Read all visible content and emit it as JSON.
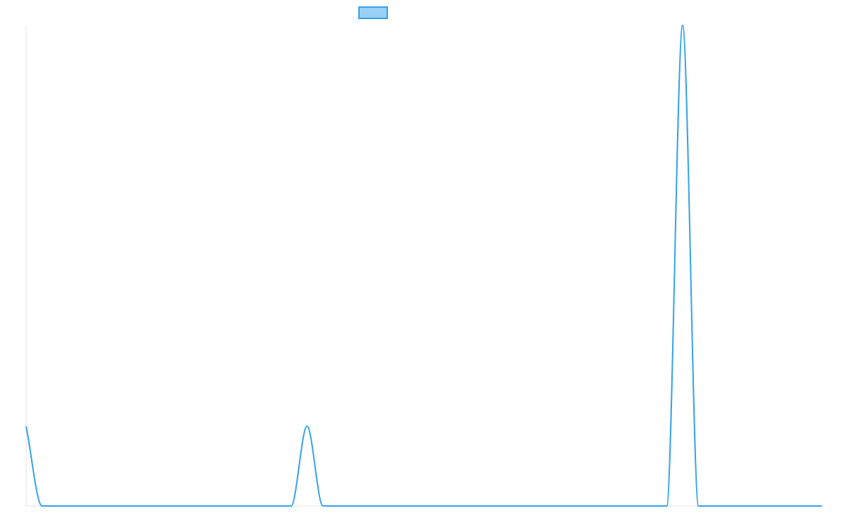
{
  "chart_data": {
    "type": "line",
    "title": "",
    "xlabel": "",
    "ylabel": "",
    "grid": false,
    "legend": {
      "position": "top-center",
      "entries": [
        {
          "name": "",
          "color": "#36a2eb",
          "fill": "#9ad0f5"
        }
      ]
    },
    "xlim": [
      0,
      1
    ],
    "ylim": [
      0,
      1
    ],
    "series": [
      {
        "name": "",
        "color": "#36a2eb",
        "x": [
          0,
          0.02,
          0.333,
          0.353,
          0.373,
          0.805,
          0.825,
          0.845,
          1
        ],
        "y": [
          0.166,
          0,
          0,
          0.166,
          0,
          0,
          1,
          0,
          0
        ]
      }
    ]
  }
}
